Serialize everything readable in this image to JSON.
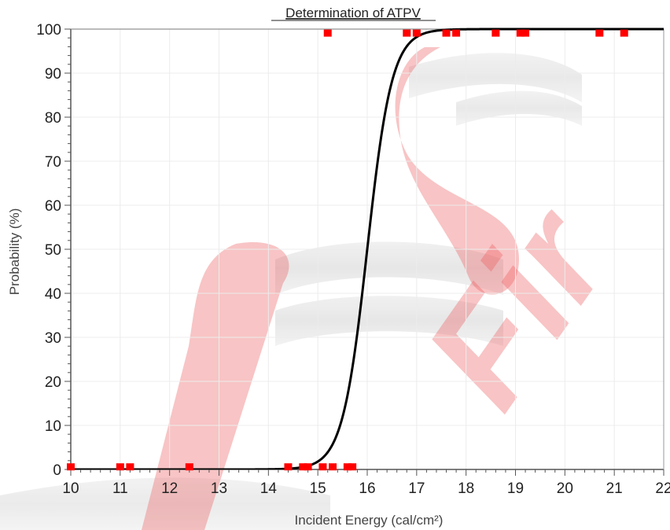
{
  "chart_data": {
    "type": "scatter",
    "title": "Determination of ATPV",
    "xlabel": "Incident Energy (cal/cm²)",
    "ylabel": "Probability (%)",
    "xlim": [
      10,
      22
    ],
    "ylim": [
      0,
      100
    ],
    "x_ticks": [
      "10",
      "11",
      "12",
      "13",
      "14",
      "15",
      "16",
      "17",
      "18",
      "19",
      "20",
      "21",
      "22"
    ],
    "y_ticks": [
      "0",
      "10",
      "20",
      "30",
      "40",
      "50",
      "60",
      "70",
      "80",
      "90",
      "100"
    ],
    "grid": true,
    "legend": "none",
    "series": [
      {
        "kind": "points",
        "color": "#ff0000",
        "x": [
          10.0,
          11.0,
          11.2,
          12.4,
          14.4,
          14.7,
          14.8,
          15.1,
          15.3,
          15.6,
          15.7,
          15.2,
          16.8,
          17.0,
          17.6,
          17.8,
          18.6,
          19.1,
          19.2,
          20.7,
          21.2
        ],
        "y": [
          0.5,
          0.5,
          0.5,
          0.5,
          0.5,
          0.5,
          0.5,
          0.5,
          0.5,
          0.5,
          0.5,
          99,
          99,
          99,
          99,
          99,
          99,
          99,
          99,
          99,
          99
        ]
      },
      {
        "kind": "logistic-fit",
        "color": "#000000",
        "center": 16.0,
        "scale": 0.25
      }
    ]
  },
  "watermark": {
    "text": "Fir",
    "color": "#e8383d"
  }
}
